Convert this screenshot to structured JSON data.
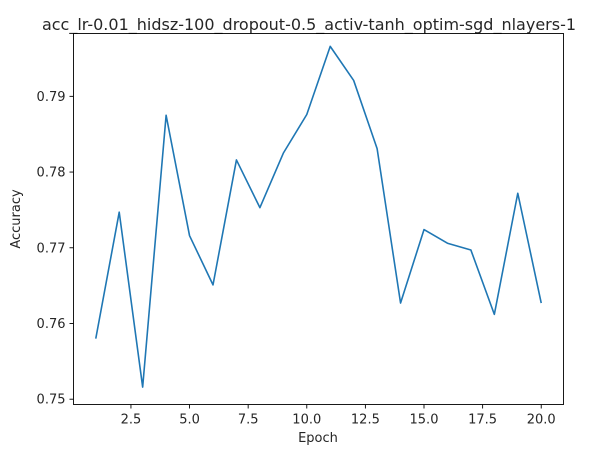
{
  "chart_data": {
    "type": "line",
    "title": "acc_lr-0.01_hidsz-100_dropout-0.5_activ-tanh_optim-sgd_nlayers-1",
    "xlabel": "Epoch",
    "ylabel": "Accuracy",
    "xlim": [
      0.05,
      20.95
    ],
    "ylim": [
      0.7493,
      0.7983
    ],
    "xticks": [
      2.5,
      5.0,
      7.5,
      10.0,
      12.5,
      15.0,
      17.5,
      20.0
    ],
    "xtick_labels": [
      "2.5",
      "5.0",
      "7.5",
      "10.0",
      "12.5",
      "15.0",
      "17.5",
      "20.0"
    ],
    "yticks": [
      0.75,
      0.76,
      0.77,
      0.78,
      0.79
    ],
    "ytick_labels": [
      "0.75",
      "0.76",
      "0.77",
      "0.78",
      "0.79"
    ],
    "grid": false,
    "series": [
      {
        "color": "#1f77b4",
        "x": [
          1,
          2,
          3,
          4,
          5,
          6,
          7,
          8,
          9,
          10,
          11,
          12,
          13,
          14,
          15,
          16,
          17,
          18,
          19,
          20
        ],
        "y": [
          0.758,
          0.7747,
          0.7516,
          0.7875,
          0.7716,
          0.7651,
          0.7816,
          0.7753,
          0.7825,
          0.7876,
          0.7966,
          0.7921,
          0.7831,
          0.7627,
          0.7724,
          0.7706,
          0.7697,
          0.7612,
          0.7772,
          0.7627
        ]
      }
    ]
  }
}
